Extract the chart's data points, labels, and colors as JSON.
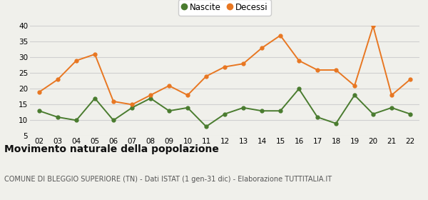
{
  "years": [
    "02",
    "03",
    "04",
    "05",
    "06",
    "07",
    "08",
    "09",
    "10",
    "11",
    "12",
    "13",
    "14",
    "15",
    "16",
    "17",
    "18",
    "19",
    "20",
    "21",
    "22"
  ],
  "nascite": [
    13,
    11,
    10,
    17,
    10,
    14,
    17,
    13,
    14,
    8,
    12,
    14,
    13,
    13,
    20,
    11,
    9,
    18,
    12,
    14,
    12
  ],
  "decessi": [
    19,
    23,
    29,
    31,
    16,
    15,
    18,
    21,
    18,
    24,
    27,
    28,
    33,
    37,
    29,
    26,
    26,
    21,
    40,
    18,
    23
  ],
  "nascite_color": "#4a7c2f",
  "decessi_color": "#e87722",
  "background_color": "#f0f0eb",
  "grid_color": "#d0d0d0",
  "ylim": [
    5,
    40
  ],
  "yticks": [
    5,
    10,
    15,
    20,
    25,
    30,
    35,
    40
  ],
  "title": "Movimento naturale della popolazione",
  "subtitle": "COMUNE DI BLEGGIO SUPERIORE (TN) - Dati ISTAT (1 gen-31 dic) - Elaborazione TUTTITALIA.IT",
  "legend_nascite": "Nascite",
  "legend_decessi": "Decessi",
  "title_fontsize": 10,
  "subtitle_fontsize": 7,
  "tick_fontsize": 7.5,
  "legend_fontsize": 8.5
}
